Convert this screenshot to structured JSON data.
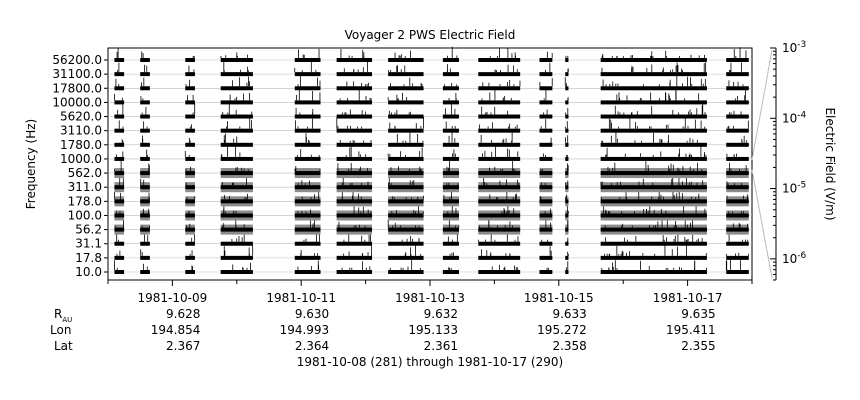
{
  "chart_data": {
    "type": "line",
    "title": "Voyager 2 PWS Electric Field",
    "ylabel": "Frequency (Hz)",
    "y2label": "Electric Field (V/m)",
    "channels": [
      "10.0",
      "17.8",
      "31.1",
      "56.2",
      "100.0",
      "178.0",
      "311.0",
      "562.0",
      "1000.0",
      "1780.0",
      "3110.0",
      "5620.0",
      "10000.0",
      "17800.0",
      "31100.0",
      "56200.0"
    ],
    "y2_scale": "log",
    "y2lim": [
      5e-07,
      0.001
    ],
    "y2_ticks": [
      {
        "label": "10",
        "exp": "-3"
      },
      {
        "label": "10",
        "exp": "-4"
      },
      {
        "label": "10",
        "exp": "-5"
      },
      {
        "label": "10",
        "exp": "-6"
      }
    ],
    "x_range": [
      "1981-10-08",
      "1981-10-18"
    ],
    "x_ticks": [
      "1981-10-09",
      "1981-10-11",
      "1981-10-13",
      "1981-10-15",
      "1981-10-17"
    ],
    "data_segments_days": [
      [
        0.1,
        0.25
      ],
      [
        0.5,
        0.65
      ],
      [
        1.2,
        1.35
      ],
      [
        1.75,
        2.25
      ],
      [
        2.9,
        3.3
      ],
      [
        3.55,
        4.1
      ],
      [
        4.35,
        4.9
      ],
      [
        5.2,
        5.45
      ],
      [
        5.75,
        6.4
      ],
      [
        6.7,
        6.9
      ],
      [
        7.1,
        7.15
      ],
      [
        7.65,
        9.3
      ],
      [
        9.6,
        9.95
      ]
    ],
    "ephemeris": {
      "row_labels": {
        "r_main": "R",
        "r_sub": "AU",
        "lon": "Lon",
        "lat": "Lat"
      },
      "r_au": [
        "9.628",
        "9.630",
        "9.632",
        "9.633",
        "9.635"
      ],
      "lon": [
        "194.854",
        "194.993",
        "195.133",
        "195.272",
        "195.411"
      ],
      "lat": [
        "2.367",
        "2.364",
        "2.361",
        "2.358",
        "2.355"
      ]
    },
    "footer": "1981-10-08 (281) through 1981-10-17 (290)"
  }
}
